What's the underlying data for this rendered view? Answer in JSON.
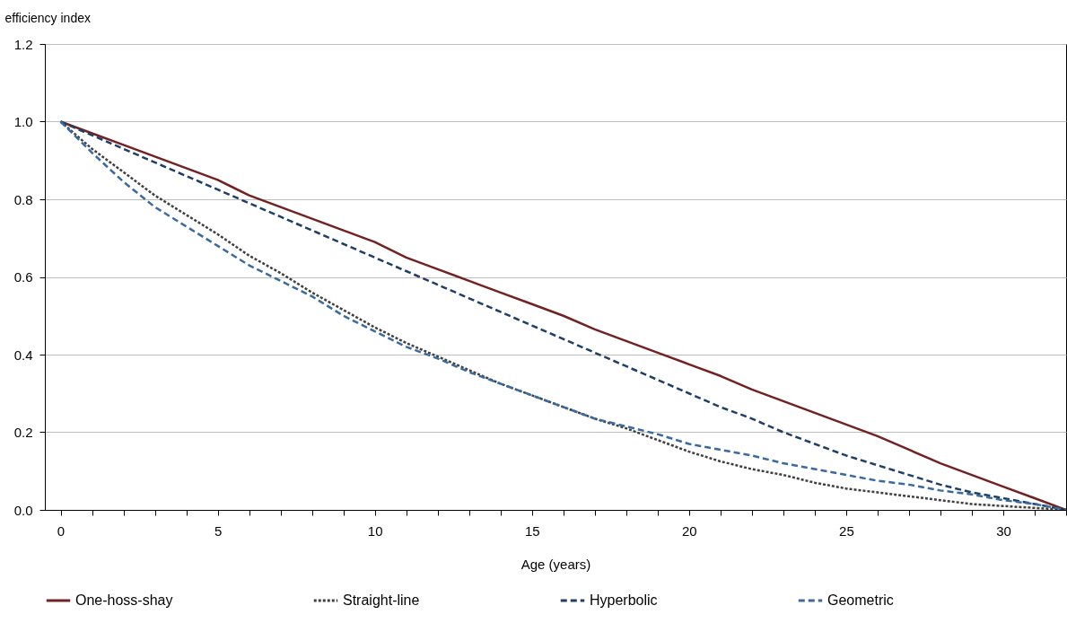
{
  "chart_data": {
    "type": "line",
    "xlabel": "Age (years)",
    "ylabel": "efficiency index",
    "x": [
      0,
      1,
      2,
      3,
      4,
      5,
      6,
      7,
      8,
      9,
      10,
      11,
      12,
      13,
      14,
      15,
      16,
      17,
      18,
      19,
      20,
      21,
      22,
      23,
      24,
      25,
      26,
      27,
      28,
      29,
      30,
      31,
      32
    ],
    "series": [
      {
        "name": "One-hoss-shay",
        "color": "#722222",
        "line_style": "solid",
        "values": [
          1.0,
          0.97,
          0.94,
          0.91,
          0.88,
          0.85,
          0.81,
          0.78,
          0.75,
          0.72,
          0.69,
          0.65,
          0.62,
          0.59,
          0.56,
          0.53,
          0.5,
          0.465,
          0.435,
          0.405,
          0.375,
          0.345,
          0.31,
          0.28,
          0.25,
          0.22,
          0.19,
          0.155,
          0.12,
          0.09,
          0.06,
          0.03,
          0.0
        ]
      },
      {
        "name": "Straight-line",
        "color": "#404040",
        "line_style": "dotted",
        "values": [
          1.0,
          0.93,
          0.87,
          0.81,
          0.76,
          0.71,
          0.655,
          0.61,
          0.56,
          0.515,
          0.47,
          0.43,
          0.395,
          0.36,
          0.325,
          0.295,
          0.265,
          0.235,
          0.21,
          0.18,
          0.15,
          0.125,
          0.105,
          0.09,
          0.07,
          0.055,
          0.045,
          0.035,
          0.025,
          0.015,
          0.01,
          0.005,
          0.0
        ]
      },
      {
        "name": "Hyperbolic",
        "color": "#1f3f66",
        "line_style": "dashed",
        "values": [
          1.0,
          0.965,
          0.93,
          0.895,
          0.86,
          0.825,
          0.79,
          0.755,
          0.72,
          0.685,
          0.65,
          0.615,
          0.58,
          0.545,
          0.51,
          0.475,
          0.44,
          0.405,
          0.37,
          0.335,
          0.3,
          0.265,
          0.235,
          0.2,
          0.17,
          0.14,
          0.115,
          0.09,
          0.065,
          0.045,
          0.03,
          0.015,
          0.0
        ]
      },
      {
        "name": "Geometric",
        "color": "#3a6aa0",
        "line_style": "dashed",
        "values": [
          1.0,
          0.92,
          0.845,
          0.78,
          0.73,
          0.68,
          0.63,
          0.59,
          0.55,
          0.5,
          0.46,
          0.42,
          0.39,
          0.355,
          0.325,
          0.295,
          0.265,
          0.235,
          0.215,
          0.195,
          0.17,
          0.155,
          0.14,
          0.12,
          0.105,
          0.09,
          0.075,
          0.065,
          0.05,
          0.04,
          0.025,
          0.015,
          0.0
        ]
      }
    ],
    "xlim": [
      -0.5,
      32
    ],
    "xticks": [
      0,
      {
        "value": 1,
        "label": null
      },
      {
        "value": 2,
        "label": null
      },
      {
        "value": 3,
        "label": null
      },
      {
        "value": 4,
        "label": null
      },
      5,
      {
        "value": 6,
        "label": null
      },
      {
        "value": 7,
        "label": null
      },
      {
        "value": 8,
        "label": null
      },
      {
        "value": 9,
        "label": null
      },
      10,
      {
        "value": 11,
        "label": null
      },
      {
        "value": 12,
        "label": null
      },
      {
        "value": 13,
        "label": null
      },
      {
        "value": 14,
        "label": null
      },
      15,
      {
        "value": 16,
        "label": null
      },
      {
        "value": 17,
        "label": null
      },
      {
        "value": 18,
        "label": null
      },
      {
        "value": 19,
        "label": null
      },
      20,
      {
        "value": 21,
        "label": null
      },
      {
        "value": 22,
        "label": null
      },
      {
        "value": 23,
        "label": null
      },
      {
        "value": 24,
        "label": null
      },
      25,
      {
        "value": 26,
        "label": null
      },
      {
        "value": 27,
        "label": null
      },
      {
        "value": 28,
        "label": null
      },
      {
        "value": 29,
        "label": null
      },
      30,
      {
        "value": 31,
        "label": null
      },
      {
        "value": 32,
        "label": null
      }
    ],
    "ylim": [
      0,
      1.2
    ],
    "yticks": [
      {
        "value": 0,
        "label": "0.0"
      },
      {
        "value": 0.2,
        "label": "0.2"
      },
      {
        "value": 0.4,
        "label": "0.4"
      },
      {
        "value": 0.6,
        "label": "0.6"
      },
      {
        "value": 0.8,
        "label": "0.8"
      },
      {
        "value": 1.0,
        "label": "1.0"
      },
      {
        "value": 1.2,
        "label": "1.2"
      }
    ],
    "grid": "y",
    "legend": "bottom"
  }
}
